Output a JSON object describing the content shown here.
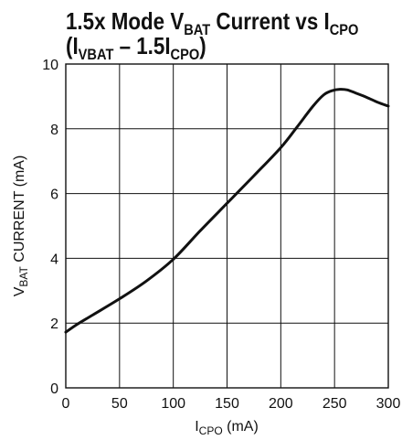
{
  "chart_data": {
    "type": "line",
    "title": {
      "line1": {
        "pre": "1.5x Mode V",
        "sub1": "BAT",
        "mid": " Current vs I",
        "sub2": "CPO"
      },
      "line2": {
        "pre": "(I",
        "sub1": "VBAT",
        "mid": " – 1.5I",
        "sub2": "CPO",
        "post": ")"
      }
    },
    "xlabel": {
      "pre": "I",
      "sub": "CPO",
      "post": " (mA)"
    },
    "ylabel": {
      "pre": "V",
      "sub": "BAT",
      "post": " CURRENT (mA)"
    },
    "xlim": [
      0,
      300
    ],
    "ylim": [
      0,
      10
    ],
    "xticks": [
      0,
      50,
      100,
      150,
      200,
      250,
      300
    ],
    "yticks": [
      0,
      2,
      4,
      6,
      8,
      10
    ],
    "grid": true,
    "series": [
      {
        "x": [
          0,
          10,
          25,
          50,
          75,
          100,
          125,
          150,
          175,
          200,
          215,
          230,
          240,
          248,
          255,
          262,
          270,
          280,
          290,
          300
        ],
        "y": [
          1.72,
          1.95,
          2.25,
          2.75,
          3.3,
          3.97,
          4.85,
          5.7,
          6.55,
          7.42,
          8.05,
          8.7,
          9.05,
          9.18,
          9.22,
          9.2,
          9.1,
          8.97,
          8.82,
          8.7
        ]
      }
    ]
  }
}
